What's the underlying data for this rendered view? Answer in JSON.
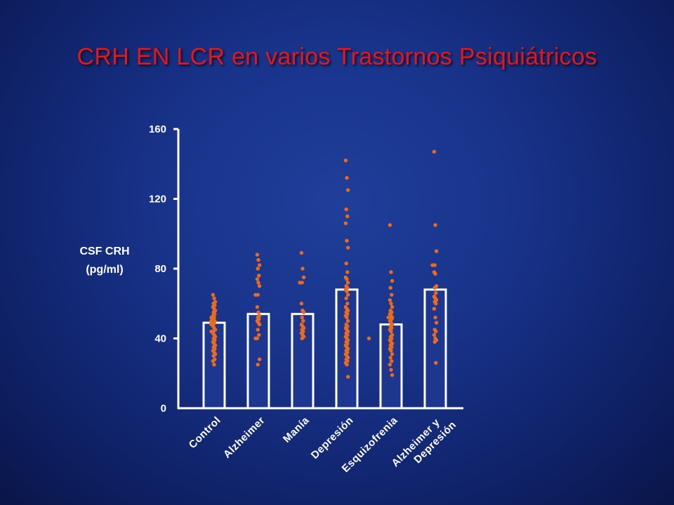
{
  "title": "CRH EN LCR en varios Trastornos Psiquiátricos",
  "colors": {
    "bar_fill": "#1d3690",
    "bar_stroke": "#ffffff",
    "points": "#ee6a1a",
    "axis": "#ffffff",
    "title": "#e8161c"
  },
  "chart_data": {
    "type": "bar",
    "title": "CRH EN LCR en varios Trastornos Psiquiátricos",
    "ylabel": "CSF CRH (pg/ml)",
    "ylabel_lines": [
      "CSF CRH",
      "(pg/ml)"
    ],
    "xlabel": "",
    "ylim": [
      0,
      160
    ],
    "yticks": [
      0,
      40,
      80,
      120,
      160
    ],
    "grid": false,
    "categories": [
      "Control",
      "Alzheimer",
      "Manía",
      "Depresión",
      "Esquizofrenia",
      "Alzheimer y Depresión"
    ],
    "category_label_lines": [
      [
        "Control"
      ],
      [
        "Alzheimer"
      ],
      [
        "Manía"
      ],
      [
        "Depresión"
      ],
      [
        "Esquizofrenia"
      ],
      [
        "Alzheimer y",
        "Depresión"
      ]
    ],
    "values": [
      49,
      54,
      54,
      68,
      48,
      68
    ],
    "individual_points": [
      [
        65,
        63,
        61,
        60,
        59,
        58,
        57,
        56,
        55,
        54,
        53,
        52,
        52,
        51,
        50,
        50,
        49,
        49,
        48,
        48,
        47,
        46,
        45,
        44,
        44,
        43,
        42,
        41,
        40,
        39,
        38,
        37,
        36,
        35,
        34,
        33,
        32,
        31,
        30,
        28,
        27,
        25
      ],
      [
        88,
        85,
        82,
        80,
        76,
        74,
        72,
        70,
        65,
        65,
        58,
        55,
        53,
        52,
        51,
        50,
        49,
        48,
        45,
        42,
        40,
        40,
        28,
        25
      ],
      [
        89,
        80,
        75,
        72,
        72,
        60,
        56,
        55,
        52,
        50,
        48,
        47,
        46,
        45,
        44,
        43,
        42,
        41,
        40
      ],
      [
        142,
        132,
        125,
        114,
        110,
        106,
        96,
        92,
        83,
        78,
        75,
        74,
        72,
        70,
        69,
        68,
        67,
        65,
        63,
        60,
        58,
        57,
        56,
        55,
        54,
        53,
        52,
        50,
        48,
        47,
        46,
        45,
        44,
        43,
        42,
        41,
        40,
        39,
        38,
        37,
        36,
        35,
        34,
        33,
        32,
        31,
        30,
        29,
        28,
        27,
        26,
        25,
        18
      ],
      [
        105,
        78,
        73,
        69,
        65,
        62,
        60,
        58,
        56,
        55,
        54,
        53,
        52,
        52,
        51,
        50,
        49,
        48,
        47,
        46,
        45,
        44,
        42,
        41,
        40,
        39,
        38,
        37,
        36,
        35,
        34,
        33,
        31,
        29,
        27,
        25,
        22,
        19
      ],
      [
        147,
        105,
        90,
        82,
        82,
        78,
        77,
        70,
        69,
        66,
        64,
        63,
        62,
        61,
        60,
        57,
        52,
        49,
        45,
        44,
        42,
        40,
        39,
        38,
        26
      ]
    ],
    "extra_points": [
      {
        "x_between": [
          3,
          4
        ],
        "y": 40
      }
    ]
  }
}
